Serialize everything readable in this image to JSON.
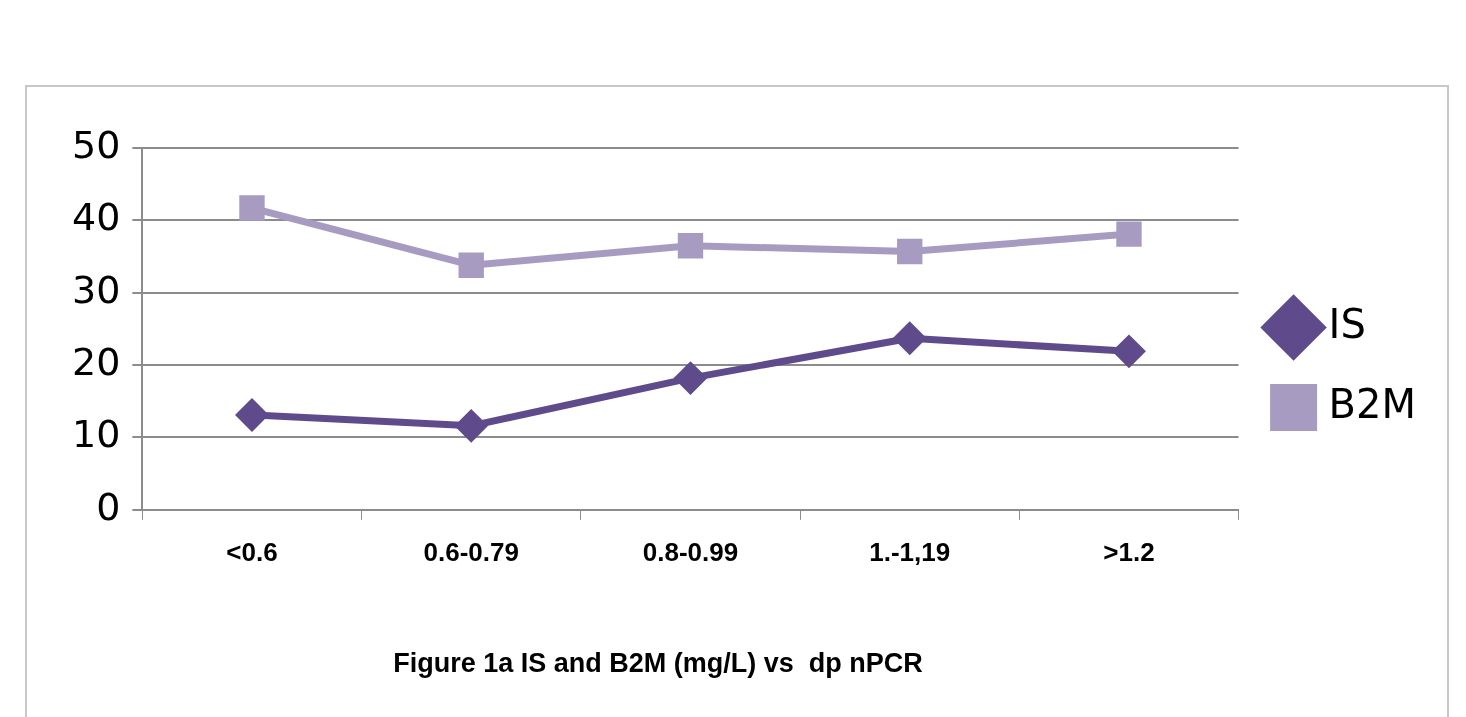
{
  "chart_data": {
    "type": "line",
    "categories": [
      "<0.6",
      "0.6-0.79",
      "0.8-0.99",
      "1.-1,19",
      ">1.2"
    ],
    "series": [
      {
        "name": "IS",
        "color": "#5f4b8b",
        "marker": "diamond",
        "values": [
          13.1,
          11.6,
          18.2,
          23.7,
          21.9
        ]
      },
      {
        "name": "B2M",
        "color": "#a89bc2",
        "marker": "square",
        "values": [
          41.7,
          33.8,
          36.5,
          35.7,
          38.1
        ]
      }
    ],
    "ylim": [
      0,
      50
    ],
    "yticks": [
      0,
      10,
      20,
      30,
      40,
      50
    ],
    "grid": "y",
    "legend": "right",
    "annotations": [
      "Figure 1a IS and B2M (mg/L) vs  dp nPCR"
    ]
  }
}
